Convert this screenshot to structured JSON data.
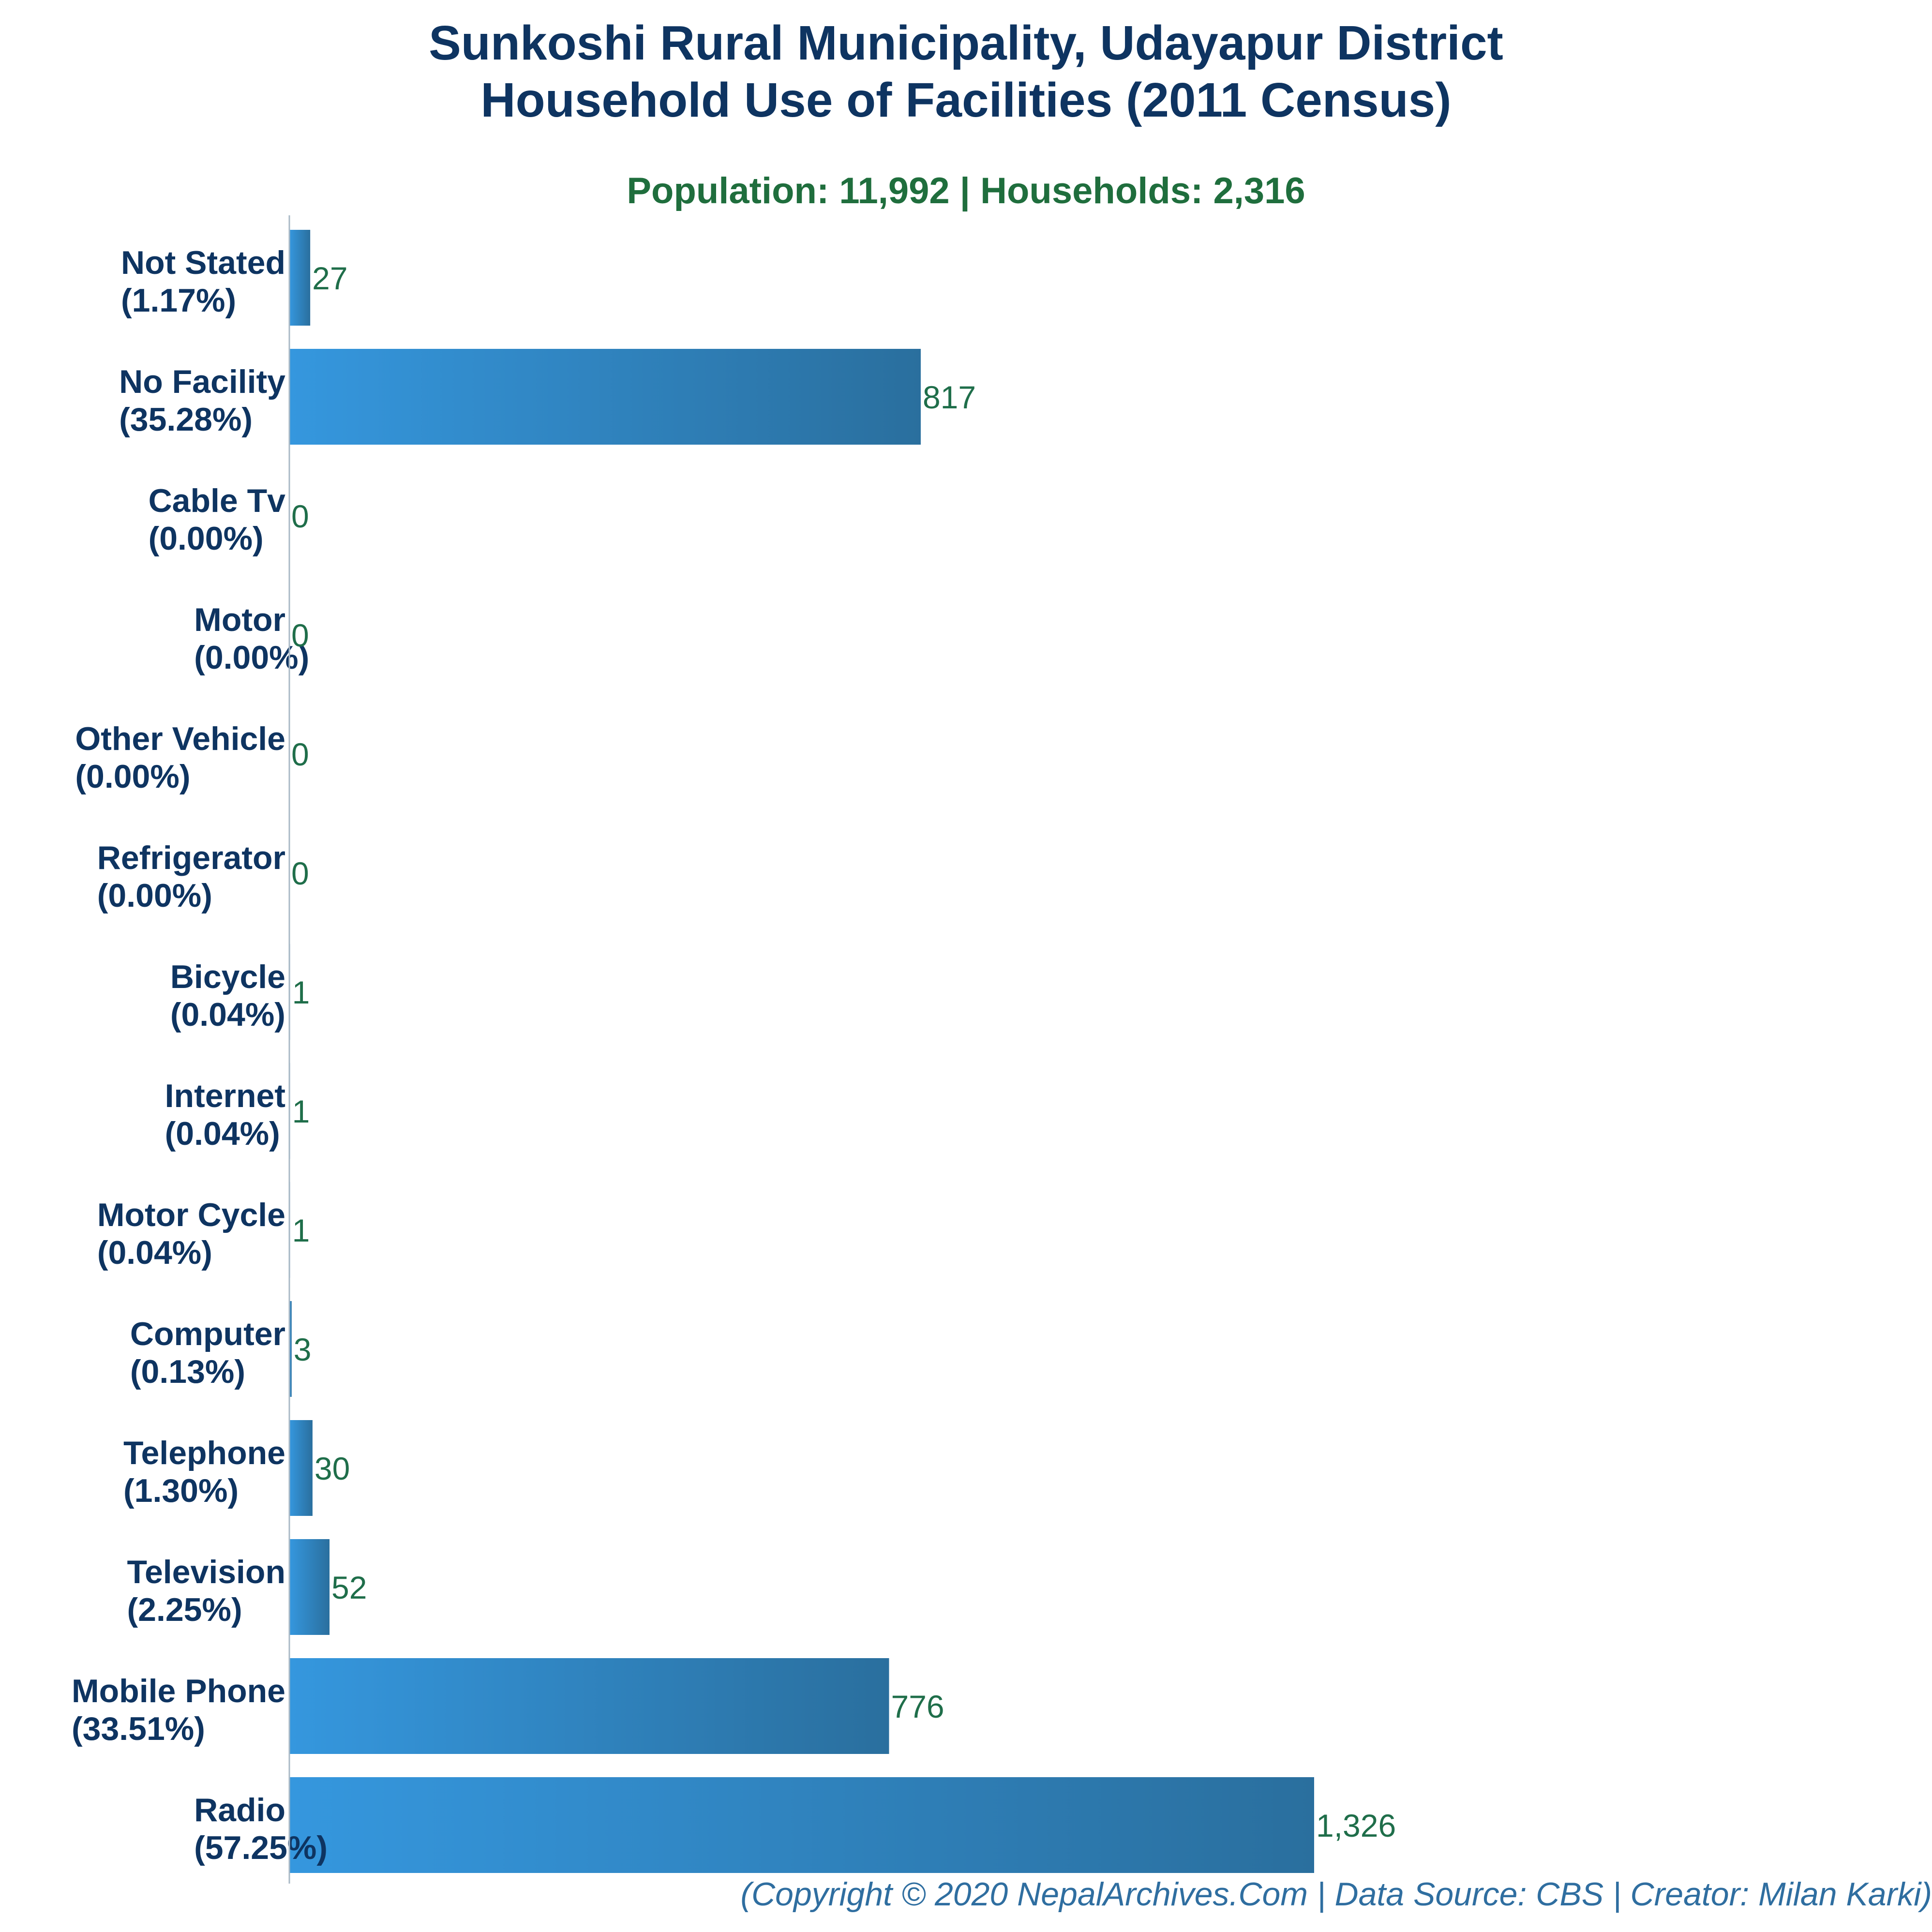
{
  "header": {
    "title_line1": "Sunkoshi Rural Municipality, Udayapur District",
    "title_line2": "Household Use of Facilities (2011 Census)",
    "subtitle": "Population: 11,992 | Households: 2,316"
  },
  "footer": {
    "credit": "(Copyright © 2020 NepalArchives.Com | Data Source: CBS | Creator: Milan Karki)"
  },
  "colors": {
    "bar_light": "#3597de",
    "bar_dark": "#2a6f9e",
    "title": "#0e3461",
    "subtitle": "#1f6e3d",
    "value_label": "#1f6e4a",
    "footer": "#2f6ea0"
  },
  "chart_data": {
    "type": "bar",
    "orientation": "horizontal",
    "title": "Sunkoshi Rural Municipality, Udayapur District Household Use of Facilities (2011 Census)",
    "subtitle": "Population: 11,992 | Households: 2,316",
    "xlabel": "",
    "ylabel": "",
    "grid": false,
    "legend": "none",
    "xlim": [
      0,
      1326
    ],
    "categories": [
      "Not Stated",
      "No Facility",
      "Cable Tv",
      "Motor",
      "Other Vehicle",
      "Refrigerator",
      "Bicycle",
      "Internet",
      "Motor Cycle",
      "Computer",
      "Telephone",
      "Television",
      "Mobile Phone",
      "Radio"
    ],
    "percent_labels": [
      "(1.17%)",
      "(35.28%)",
      "(0.00%)",
      "(0.00%)",
      "(0.00%)",
      "(0.00%)",
      "(0.04%)",
      "(0.04%)",
      "(0.04%)",
      "(0.13%)",
      "(1.30%)",
      "(2.25%)",
      "(33.51%)",
      "(57.25%)"
    ],
    "values": [
      27,
      817,
      0,
      0,
      0,
      0,
      1,
      1,
      1,
      3,
      30,
      52,
      776,
      1326
    ],
    "value_labels": [
      "27",
      "817",
      "0",
      "0",
      "0",
      "0",
      "1",
      "1",
      "1",
      "3",
      "30",
      "52",
      "776",
      "1,326"
    ]
  }
}
